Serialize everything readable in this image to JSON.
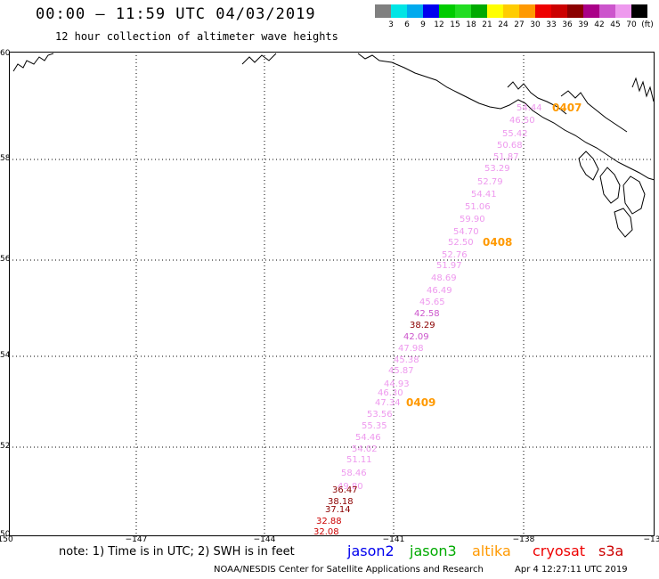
{
  "title": "00:00 – 11:59 UTC 04/03/2019",
  "subtitle": "12 hour collection of altimeter wave heights",
  "colorbar": {
    "colors": [
      "#808080",
      "#00e5e5",
      "#00aaee",
      "#0000ee",
      "#00cc00",
      "#22dd22",
      "#00aa00",
      "#ffff00",
      "#ffcc00",
      "#ff9900",
      "#ee0000",
      "#cc0000",
      "#8b0000",
      "#aa0088",
      "#cc55cc",
      "#ee99ee",
      "#000000"
    ],
    "labels": [
      "3",
      "6",
      "9",
      "12",
      "15",
      "18",
      "21",
      "24",
      "27",
      "30",
      "33",
      "36",
      "39",
      "42",
      "45",
      "70",
      "(ft)"
    ]
  },
  "map": {
    "lat_labels": [
      "60",
      "58",
      "56",
      "54",
      "52",
      "50"
    ],
    "lon_labels": [
      "−150",
      "−147",
      "−144",
      "−141",
      "−138",
      "−13"
    ],
    "time_labels": [
      {
        "text": "0407",
        "color": "#ff9900"
      },
      {
        "text": "0408",
        "color": "#ff9900"
      },
      {
        "text": "0409",
        "color": "#ff9900"
      }
    ],
    "points": [
      {
        "v": "54.44",
        "c": "#ee99ee"
      },
      {
        "v": "46.50",
        "c": "#ee99ee"
      },
      {
        "v": "55.42",
        "c": "#ee99ee"
      },
      {
        "v": "50.68",
        "c": "#ee99ee"
      },
      {
        "v": "51.87",
        "c": "#ee99ee"
      },
      {
        "v": "53.29",
        "c": "#ee99ee"
      },
      {
        "v": "52.79",
        "c": "#ee99ee"
      },
      {
        "v": "54.41",
        "c": "#ee99ee"
      },
      {
        "v": "51.06",
        "c": "#ee99ee"
      },
      {
        "v": "59.90",
        "c": "#ee99ee"
      },
      {
        "v": "54.70",
        "c": "#ee99ee"
      },
      {
        "v": "52.50",
        "c": "#ee99ee"
      },
      {
        "v": "52.76",
        "c": "#ee99ee"
      },
      {
        "v": "51.97",
        "c": "#ee99ee"
      },
      {
        "v": "48.69",
        "c": "#ee99ee"
      },
      {
        "v": "46.49",
        "c": "#ee99ee"
      },
      {
        "v": "45.65",
        "c": "#ee99ee"
      },
      {
        "v": "42.58",
        "c": "#cc55cc"
      },
      {
        "v": "38.29",
        "c": "#8b0000"
      },
      {
        "v": "42.09",
        "c": "#cc55cc"
      },
      {
        "v": "47.98",
        "c": "#ee99ee"
      },
      {
        "v": "45.38",
        "c": "#ee99ee"
      },
      {
        "v": "45.87",
        "c": "#ee99ee"
      },
      {
        "v": "44.93",
        "c": "#ee99ee"
      },
      {
        "v": "46.30",
        "c": "#ee99ee"
      },
      {
        "v": "47.34",
        "c": "#ee99ee"
      },
      {
        "v": "53.56",
        "c": "#ee99ee"
      },
      {
        "v": "55.35",
        "c": "#ee99ee"
      },
      {
        "v": "54.46",
        "c": "#ee99ee"
      },
      {
        "v": "54.02",
        "c": "#ee99ee"
      },
      {
        "v": "51.11",
        "c": "#ee99ee"
      },
      {
        "v": "58.46",
        "c": "#ee99ee"
      },
      {
        "v": "49.80",
        "c": "#ee99ee"
      },
      {
        "v": "36.47",
        "c": "#8b0000"
      },
      {
        "v": "38.18",
        "c": "#8b0000"
      },
      {
        "v": "37.14",
        "c": "#8b0000"
      },
      {
        "v": "32.88",
        "c": "#cc0000"
      },
      {
        "v": "32.08",
        "c": "#cc0000"
      }
    ]
  },
  "note": "note: 1) Time is in UTC; 2) SWH is in feet",
  "satellites": [
    {
      "name": "jason2",
      "color": "#0000ee"
    },
    {
      "name": "jason3",
      "color": "#00aa00"
    },
    {
      "name": "altika",
      "color": "#ff9900"
    },
    {
      "name": "cryosat",
      "color": "#ee0000"
    },
    {
      "name": "s3a",
      "color": "#cc0000"
    }
  ],
  "footer": "NOAA/NESDIS Center for Satellite Applications and Research",
  "footer_time": "Apr  4 12:27:11 UTC 2019"
}
